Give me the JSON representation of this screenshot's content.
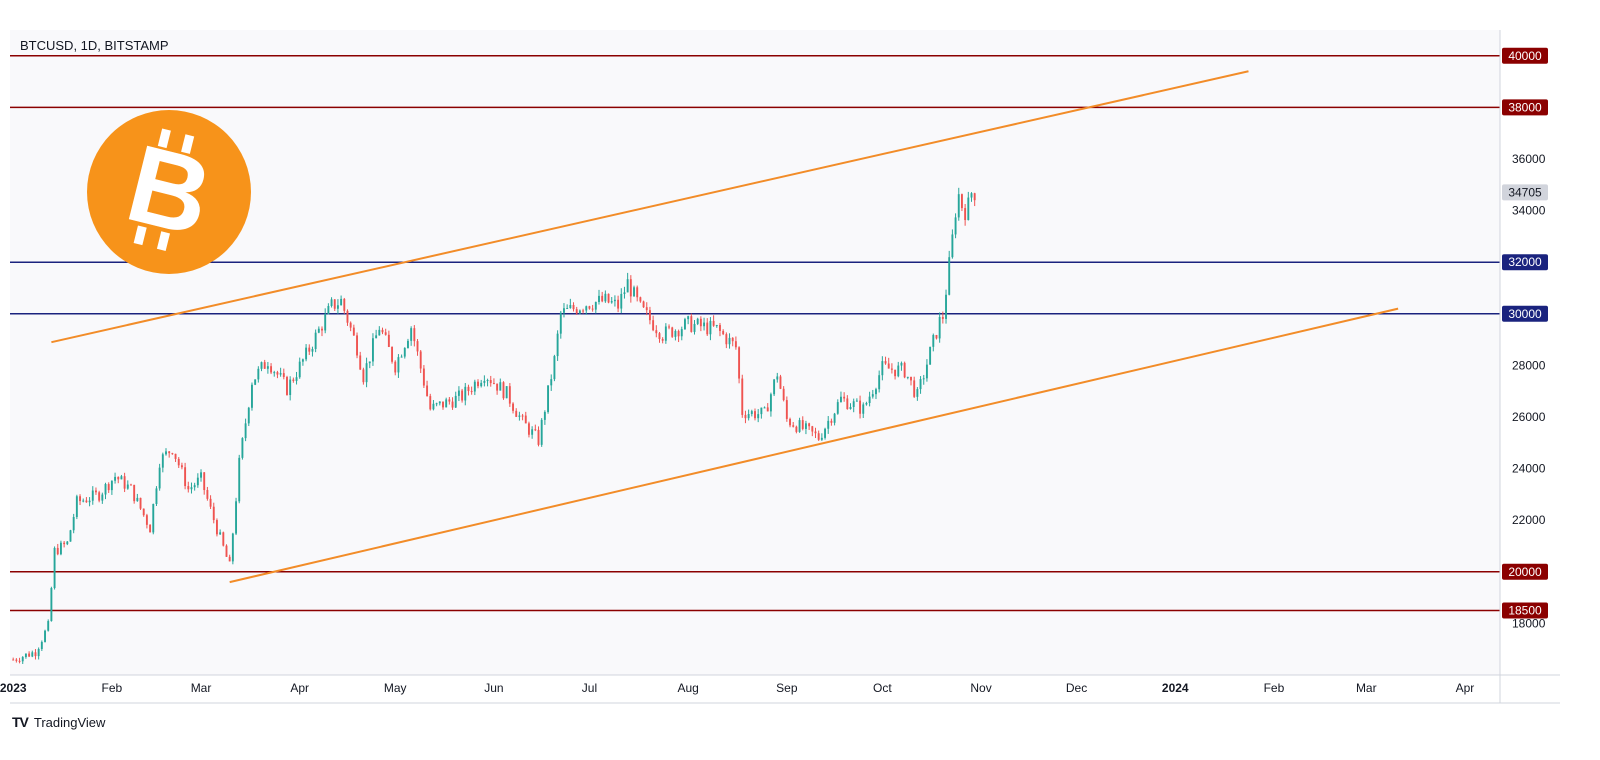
{
  "app": {
    "brand": "TradingView"
  },
  "symbol_label": "BTCUSD, 1D, BITSTAMP",
  "logo": {
    "icon": "bitcoin-logo-icon",
    "color": "#F7931A"
  },
  "colors": {
    "plot_bg": "#F9F9FB",
    "up": "#26A69A",
    "down": "#EF5350",
    "resistance": "#8B0000",
    "support": "#1A237E",
    "channel": "#F28C28",
    "price_badge": "#D1D4DC"
  },
  "chart_data": {
    "type": "candlestick",
    "ylim": [
      16000,
      41000
    ],
    "y_ticks": [
      18000,
      22000,
      24000,
      26000,
      28000,
      34000,
      36000
    ],
    "x_tick_labels": [
      "2023",
      "Feb",
      "Mar",
      "Apr",
      "May",
      "Jun",
      "Jul",
      "Aug",
      "Sep",
      "Oct",
      "Nov",
      "Dec",
      "2024",
      "Feb",
      "Mar",
      "Apr"
    ],
    "x_tick_dates": [
      "2023-01-01",
      "2023-02-01",
      "2023-03-01",
      "2023-04-01",
      "2023-05-01",
      "2023-06-01",
      "2023-07-01",
      "2023-08-01",
      "2023-09-01",
      "2023-10-01",
      "2023-11-01",
      "2023-12-01",
      "2024-01-01",
      "2024-02-01",
      "2024-03-01",
      "2024-04-01"
    ],
    "x_range": [
      "2022-12-31",
      "2024-04-12"
    ],
    "horizontal_levels": [
      {
        "value": 40000,
        "label": "40000",
        "kind": "resistance"
      },
      {
        "value": 38000,
        "label": "38000",
        "kind": "resistance"
      },
      {
        "value": 32000,
        "label": "32000",
        "kind": "support"
      },
      {
        "value": 30000,
        "label": "30000",
        "kind": "support"
      },
      {
        "value": 20000,
        "label": "20000",
        "kind": "resistance"
      },
      {
        "value": 18500,
        "label": "18500",
        "kind": "resistance"
      }
    ],
    "last_price": {
      "value": 34705,
      "label": "34705"
    },
    "trendlines": [
      {
        "name": "upper channel",
        "from": {
          "date": "2023-01-13",
          "value": 28900
        },
        "to": {
          "date": "2024-01-24",
          "value": 39400
        }
      },
      {
        "name": "lower channel",
        "from": {
          "date": "2023-03-10",
          "value": 19600
        },
        "to": {
          "date": "2024-03-11",
          "value": 30200
        }
      }
    ],
    "price_path": [
      [
        "2023-01-01",
        16600
      ],
      [
        "2023-01-08",
        16900
      ],
      [
        "2023-01-12",
        17900
      ],
      [
        "2023-01-14",
        20800
      ],
      [
        "2023-01-18",
        21100
      ],
      [
        "2023-01-21",
        22700
      ],
      [
        "2023-01-28",
        23000
      ],
      [
        "2023-02-02",
        23700
      ],
      [
        "2023-02-07",
        23200
      ],
      [
        "2023-02-13",
        21700
      ],
      [
        "2023-02-16",
        24300
      ],
      [
        "2023-02-20",
        24800
      ],
      [
        "2023-02-25",
        23200
      ],
      [
        "2023-03-01",
        23600
      ],
      [
        "2023-03-04",
        22400
      ],
      [
        "2023-03-10",
        20200
      ],
      [
        "2023-03-13",
        24200
      ],
      [
        "2023-03-17",
        27400
      ],
      [
        "2023-03-22",
        28200
      ],
      [
        "2023-03-28",
        27100
      ],
      [
        "2023-04-03",
        28400
      ],
      [
        "2023-04-11",
        30300
      ],
      [
        "2023-04-14",
        30500
      ],
      [
        "2023-04-19",
        28700
      ],
      [
        "2023-04-21",
        27600
      ],
      [
        "2023-04-26",
        29500
      ],
      [
        "2023-05-01",
        28000
      ],
      [
        "2023-05-06",
        29500
      ],
      [
        "2023-05-12",
        26300
      ],
      [
        "2023-05-22",
        26800
      ],
      [
        "2023-05-29",
        27700
      ],
      [
        "2023-06-05",
        26900
      ],
      [
        "2023-06-10",
        25800
      ],
      [
        "2023-06-15",
        25100
      ],
      [
        "2023-06-20",
        28200
      ],
      [
        "2023-06-22",
        30000
      ],
      [
        "2023-06-30",
        30400
      ],
      [
        "2023-07-06",
        30500
      ],
      [
        "2023-07-10",
        30300
      ],
      [
        "2023-07-13",
        31200
      ],
      [
        "2023-07-17",
        30200
      ],
      [
        "2023-07-24",
        29200
      ],
      [
        "2023-08-01",
        29600
      ],
      [
        "2023-08-10",
        29400
      ],
      [
        "2023-08-16",
        28700
      ],
      [
        "2023-08-18",
        26200
      ],
      [
        "2023-08-25",
        26100
      ],
      [
        "2023-08-29",
        27700
      ],
      [
        "2023-09-01",
        25900
      ],
      [
        "2023-09-11",
        25200
      ],
      [
        "2023-09-18",
        26700
      ],
      [
        "2023-09-25",
        26300
      ],
      [
        "2023-10-01",
        27900
      ],
      [
        "2023-10-08",
        27800
      ],
      [
        "2023-10-12",
        26800
      ],
      [
        "2023-10-16",
        28500
      ],
      [
        "2023-10-19",
        29700
      ],
      [
        "2023-10-20",
        29900
      ],
      [
        "2023-10-23",
        32900
      ],
      [
        "2023-10-24",
        34000
      ],
      [
        "2023-10-25",
        34600
      ],
      [
        "2023-10-26",
        34200
      ],
      [
        "2023-10-27",
        34000
      ],
      [
        "2023-10-28",
        34200
      ],
      [
        "2023-10-29",
        34700
      ],
      [
        "2023-10-30",
        34705
      ]
    ]
  }
}
